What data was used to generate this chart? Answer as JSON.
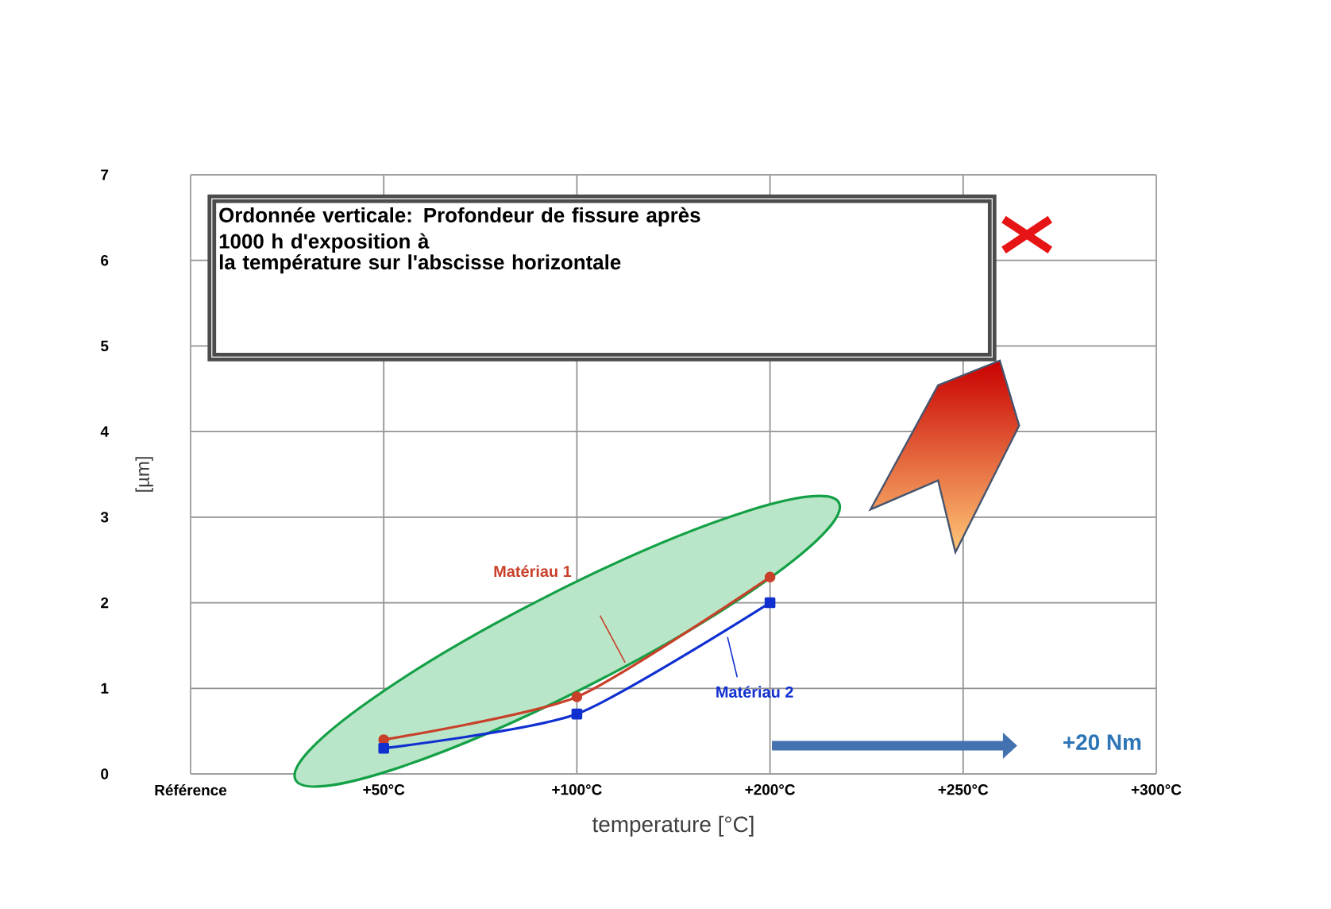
{
  "chart_data": {
    "type": "line",
    "xlabel": "temperature  [°C]",
    "ylabel": "[µm]",
    "categories": [
      "Référence",
      "+50°C",
      "+100°C",
      "+200°C",
      "+250°C",
      "+300°C"
    ],
    "ylim": [
      0,
      7
    ],
    "yticks": [
      0,
      1,
      2,
      3,
      4,
      5,
      6,
      7
    ],
    "grid": true,
    "series": [
      {
        "name": "Matériau 1",
        "marker": "circle",
        "color": "#c8402a",
        "values": [
          null,
          0.4,
          0.9,
          2.3,
          null,
          null
        ]
      },
      {
        "name": "Matériau 2",
        "marker": "square",
        "color": "#1030d0",
        "values": [
          null,
          0.3,
          0.7,
          2.0,
          null,
          null
        ]
      }
    ],
    "annotations": [
      "Ordonnée verticale: Profondeur de fissure après 1000 h d'exposition à",
      "la température sur l'abscisse horizontale",
      "+20 Nm"
    ]
  }
}
